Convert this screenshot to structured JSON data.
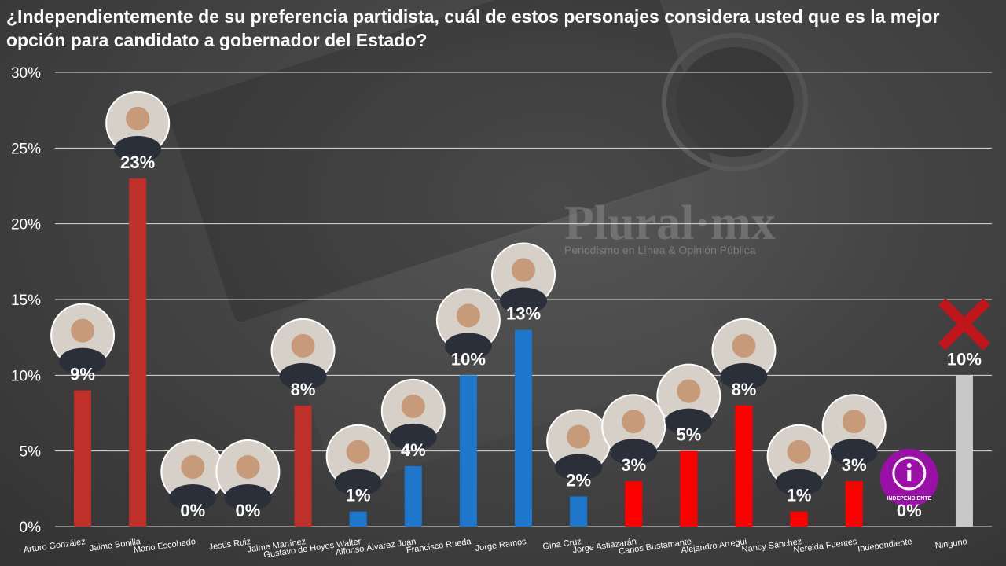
{
  "title": "¿Independientemente de su preferencia partidista, cuál de estos personajes considera usted que es la mejor opción para candidato a gobernador del Estado?",
  "watermark": {
    "brand": "Plural·mx",
    "tagline": "Periodismo en Línea & Opinión Pública"
  },
  "colors": {
    "red_dark": "#c0302a",
    "red": "#ff0000",
    "blue": "#1f77cc",
    "gray": "#c8c8c8",
    "grid": "#dcdcdc",
    "purple": "#9a0fa8"
  },
  "chart_data": {
    "type": "bar",
    "title": "¿Independientemente de su preferencia partidista, cuál de estos personajes considera usted que es la mejor opción para candidato a gobernador del Estado?",
    "xlabel": "",
    "ylabel": "",
    "ylim": [
      0,
      30
    ],
    "yticks": [
      "0%",
      "5%",
      "10%",
      "15%",
      "20%",
      "25%",
      "30%"
    ],
    "grid": true,
    "categories": [
      "Arturo González",
      "Jaime Bonilla",
      "Mario Escobedo",
      "Jesús Ruiz",
      "Jaime Martínez",
      "Gustavo de Hoyos Walter",
      "Alfonso Álvarez Juan",
      "Francisco Rueda",
      "Jorge Ramos",
      "Gina Cruz",
      "Jorge Astiazarán",
      "Carlos Bustamante",
      "Alejandro Arregui",
      "Nancy Sánchez",
      "Nereida Fuentes",
      "Independiente",
      "Ninguno"
    ],
    "values": [
      9,
      23,
      0,
      0,
      8,
      1,
      4,
      10,
      13,
      2,
      3,
      5,
      8,
      1,
      3,
      0,
      10
    ],
    "data_labels": [
      "9%",
      "23%",
      "0%",
      "0%",
      "8%",
      "1%",
      "4%",
      "10%",
      "13%",
      "2%",
      "3%",
      "5%",
      "8%",
      "1%",
      "3%",
      "0%",
      "10%"
    ],
    "bar_colors": [
      "#c0302a",
      "#c0302a",
      "#c0302a",
      "#c0302a",
      "#c0302a",
      "#1f77cc",
      "#1f77cc",
      "#1f77cc",
      "#1f77cc",
      "#1f77cc",
      "#ff0000",
      "#ff0000",
      "#ff0000",
      "#ff0000",
      "#ff0000",
      "#ff0000",
      "#c8c8c8"
    ],
    "markers": [
      "photo",
      "photo",
      "photo",
      "photo",
      "photo",
      "photo",
      "photo",
      "photo",
      "photo",
      "photo",
      "photo",
      "photo",
      "photo",
      "photo",
      "photo",
      "independent-badge",
      "x-mark"
    ],
    "independent_badge_text": "INDEPENDIENTE"
  }
}
